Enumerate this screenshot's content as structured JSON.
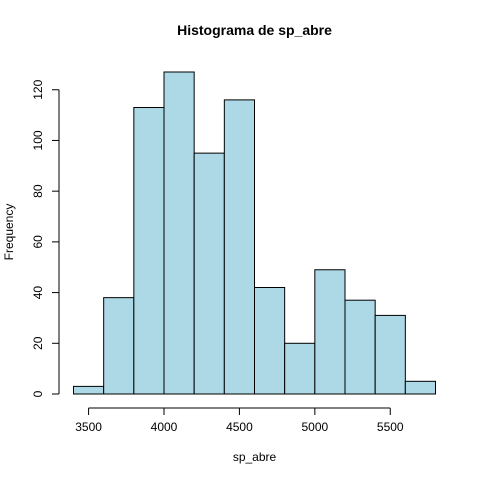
{
  "chart_data": {
    "type": "histogram",
    "title": "Histograma de sp_abre",
    "xlabel": "sp_abre",
    "ylabel": "Frequency",
    "bar_color": "#add8e6",
    "border_color": "#000000",
    "bins": [
      {
        "start": 3400,
        "end": 3600,
        "count": 3
      },
      {
        "start": 3600,
        "end": 3800,
        "count": 38
      },
      {
        "start": 3800,
        "end": 4000,
        "count": 113
      },
      {
        "start": 4000,
        "end": 4200,
        "count": 127
      },
      {
        "start": 4200,
        "end": 4400,
        "count": 95
      },
      {
        "start": 4400,
        "end": 4600,
        "count": 116
      },
      {
        "start": 4600,
        "end": 4800,
        "count": 42
      },
      {
        "start": 4800,
        "end": 5000,
        "count": 20
      },
      {
        "start": 5000,
        "end": 5200,
        "count": 49
      },
      {
        "start": 5200,
        "end": 5400,
        "count": 37
      },
      {
        "start": 5400,
        "end": 5600,
        "count": 31
      },
      {
        "start": 5600,
        "end": 5800,
        "count": 5
      }
    ],
    "xlim": [
      3400,
      5800
    ],
    "ylim": [
      0,
      127
    ],
    "x_ticks": [
      3500,
      4000,
      4500,
      5000,
      5500
    ],
    "y_ticks": [
      0,
      20,
      40,
      60,
      80,
      100,
      120
    ],
    "grid": false,
    "legend": "none"
  }
}
